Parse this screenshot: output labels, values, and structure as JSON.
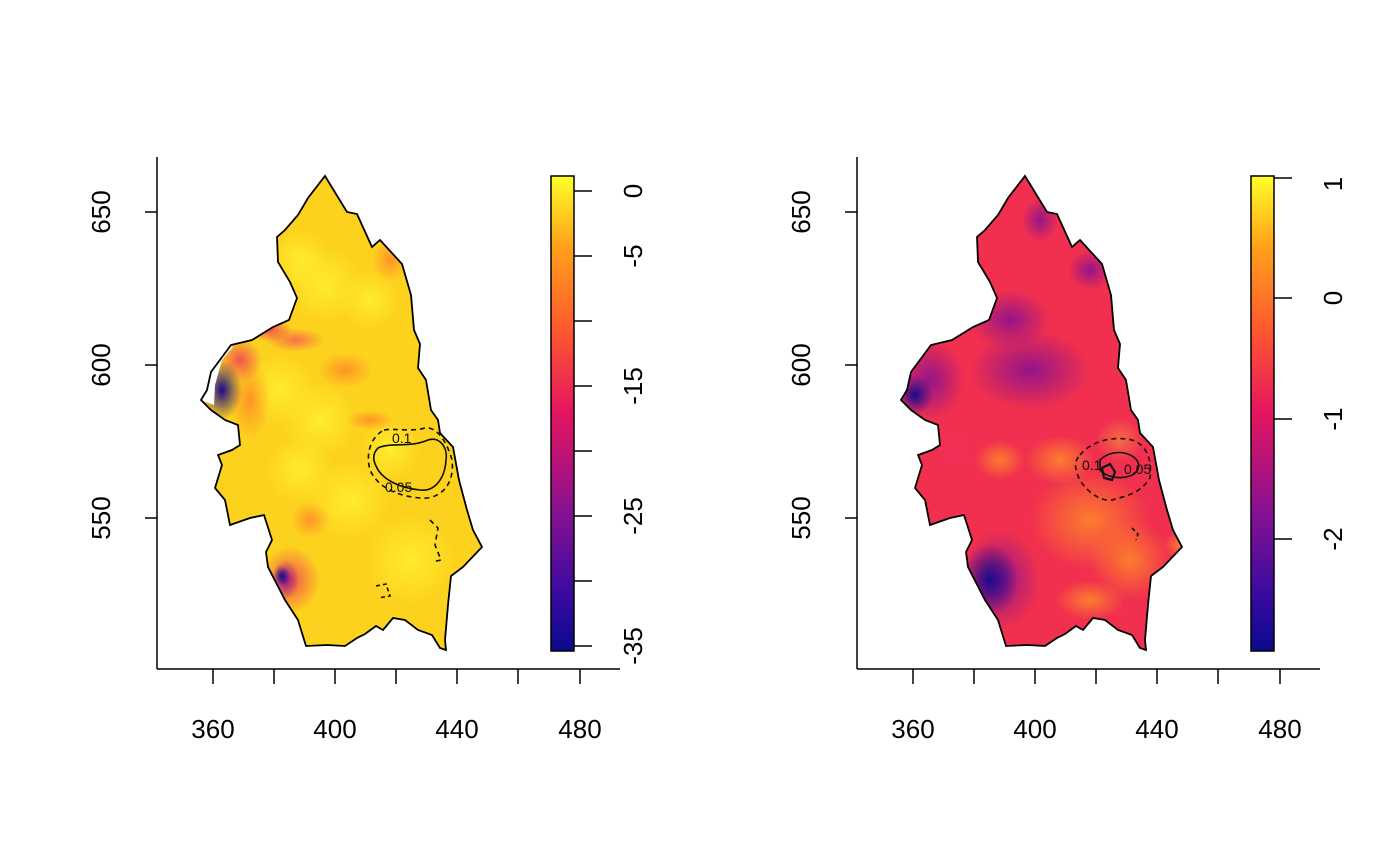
{
  "maps": [
    {
      "id": "left",
      "value_scale": {
        "colors": [
          "#0a0a8c",
          "#7a0f95",
          "#e4155f",
          "#ff5a2e",
          "#ffa01a",
          "#ffe222",
          "#ffff28"
        ],
        "ticks": [
          "0",
          "-5",
          "",
          "-15",
          "",
          "-25",
          "",
          "-35"
        ]
      },
      "x_ticks": [
        "360",
        "400",
        "440",
        "480"
      ],
      "y_ticks": [
        "650",
        "600",
        "550"
      ],
      "contour_labels": [
        "0.1",
        "0.05"
      ]
    },
    {
      "id": "right",
      "value_scale": {
        "colors": [
          "#0a0a8c",
          "#7a0f95",
          "#e4155f",
          "#ff5a2e",
          "#ffa01a",
          "#ffe222",
          "#ffff28"
        ],
        "ticks": [
          "1",
          "0",
          "-1",
          "-2"
        ]
      },
      "x_ticks": [
        "360",
        "400",
        "440",
        "480"
      ],
      "y_ticks": [
        "650",
        "600",
        "550"
      ],
      "contour_labels": [
        "0.1",
        "0.05"
      ]
    }
  ],
  "colors": {
    "axis": "#000000",
    "outline": "#000000",
    "left_base": "#fdd21e",
    "right_base": "#f0304e"
  }
}
